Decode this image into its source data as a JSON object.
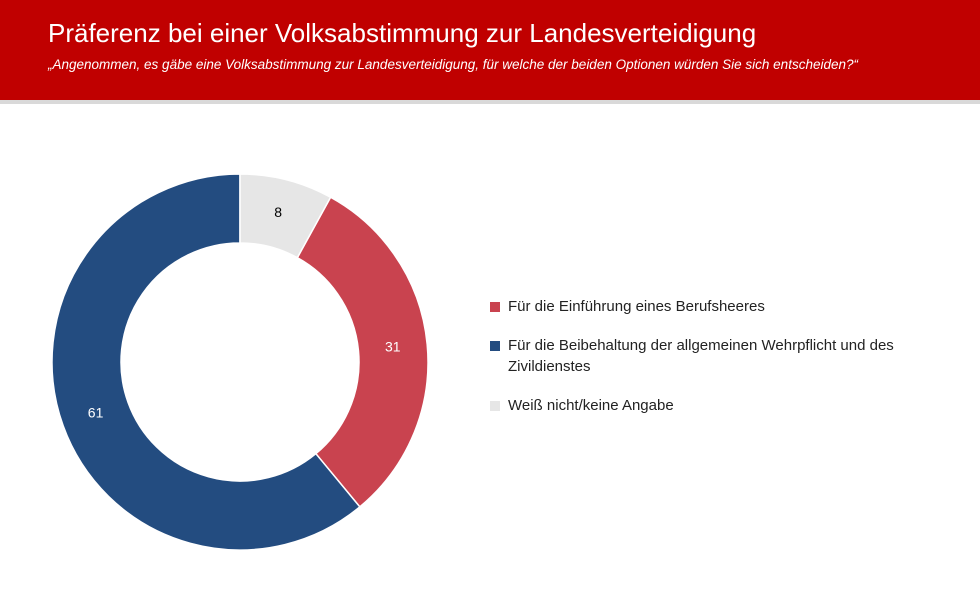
{
  "chart_data": {
    "type": "donut",
    "title": "Präferenz bei einer Volksabstimmung zur Landesverteidigung",
    "subtitle": "„Angenommen, es gäbe eine Volksabstimmung zur Landesverteidigung, für welche der beiden Optionen würden Sie sich entscheiden?“",
    "categories": [
      "Für die Einführung eines Berufsheeres",
      "Für die Beibehaltung der allgemeinen Wehrpflicht und des Zivildienstes",
      "Weiß nicht/keine Angabe"
    ],
    "values": [
      31,
      61,
      8
    ],
    "colors": [
      "#c9434f",
      "#234c80",
      "#e6e6e6"
    ],
    "legend": "right"
  }
}
